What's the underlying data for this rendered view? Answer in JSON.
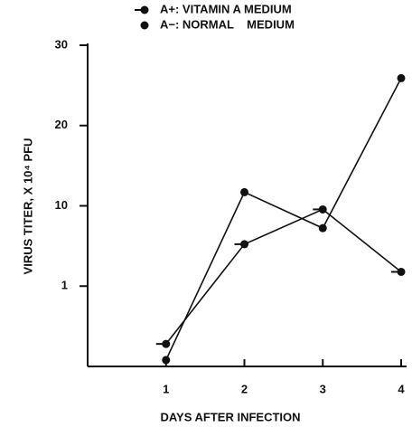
{
  "chart_data": {
    "type": "line",
    "x_label": "DAYS AFTER INFECTION",
    "y_label": "VIRUS TITER, X 10⁴ PFU",
    "x": [
      1,
      2,
      3,
      4
    ],
    "xlim": [
      0,
      4
    ],
    "xticks": [
      1,
      2,
      3,
      4
    ],
    "ylim": [
      0,
      30
    ],
    "yticks": [
      1,
      10,
      20,
      30
    ],
    "series": [
      {
        "name": "A+: VITAMIN A MEDIUM",
        "color": "#111111",
        "marker": "dash-dot",
        "values": [
          0.28,
          5.7,
          9.6,
          2.6
        ]
      },
      {
        "name": "A−: NORMAL    MEDIUM",
        "color": "#111111",
        "marker": "dot",
        "values": [
          0.08,
          11.7,
          7.5,
          25.9
        ]
      }
    ],
    "legend": "top"
  }
}
